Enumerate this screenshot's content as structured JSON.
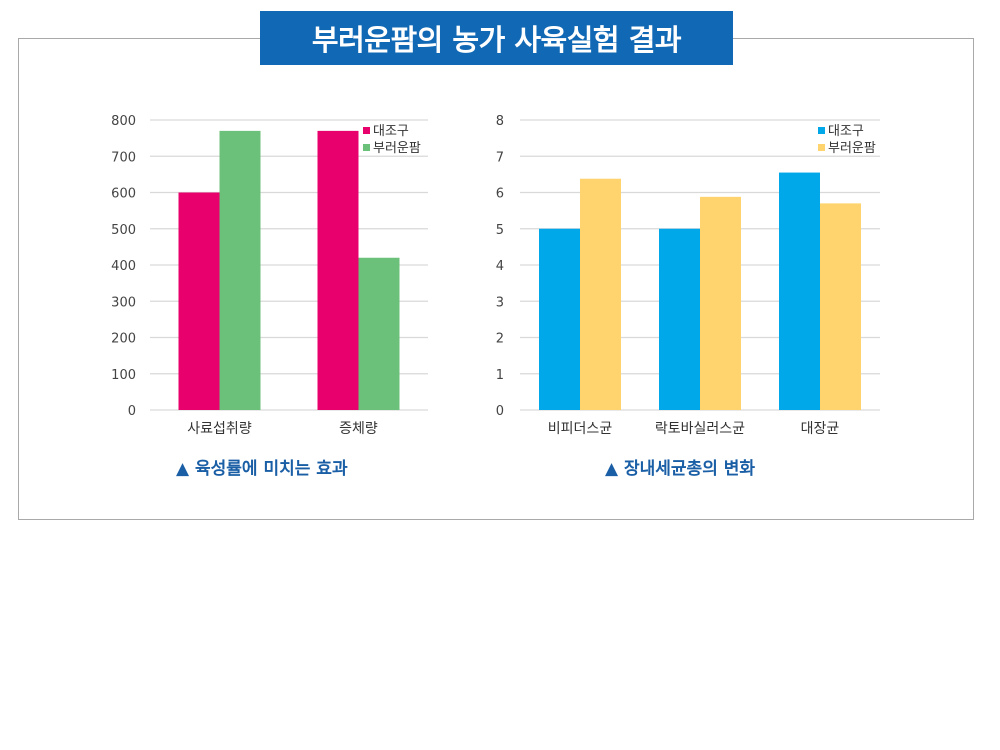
{
  "header": {
    "title": "부러운팜의 농가 사육실험 결과"
  },
  "chart_data": [
    {
      "type": "bar",
      "caption": "▲ 육성률에 미치는 효과",
      "categories": [
        "사료섭취량",
        "증체량"
      ],
      "series": [
        {
          "name": "대조구",
          "values": [
            600,
            770
          ],
          "color": "#e8006c"
        },
        {
          "name": "부러운팜",
          "values": [
            770,
            420
          ],
          "color": "#6cc17a"
        }
      ],
      "ylim": [
        0,
        800
      ],
      "yticks": [
        "0",
        "100",
        "200",
        "300",
        "400",
        "500",
        "600",
        "700",
        "800"
      ],
      "legend_position": "top-right",
      "grid": true
    },
    {
      "type": "bar",
      "caption": "▲ 장내세균총의 변화",
      "categories": [
        "비피더스균",
        "락토바실러스균",
        "대장균"
      ],
      "series": [
        {
          "name": "대조구",
          "values": [
            5.0,
            5.0,
            6.55
          ],
          "color": "#00a8ea"
        },
        {
          "name": "부러운팜",
          "values": [
            6.38,
            5.88,
            5.7
          ],
          "color": "#ffd36e"
        }
      ],
      "ylim": [
        0,
        8
      ],
      "yticks": [
        "0",
        "1",
        "2",
        "3",
        "4",
        "5",
        "6",
        "7",
        "8"
      ],
      "legend_position": "top-right",
      "grid": true
    }
  ]
}
